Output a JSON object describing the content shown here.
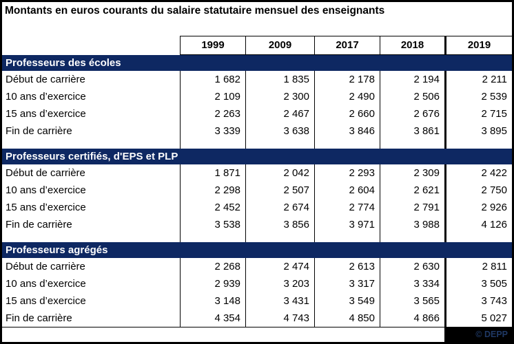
{
  "title": "Montants en euros courants du salaire statutaire mensuel des enseignants",
  "columns": [
    "1999",
    "2009",
    "2017",
    "2018",
    "2019"
  ],
  "sections": [
    {
      "header": "Professeurs des écoles",
      "rows": [
        {
          "label": "Début de carrière",
          "values": [
            "1 682",
            "1 835",
            "2 178",
            "2 194",
            "2 211"
          ]
        },
        {
          "label": "10 ans d’exercice",
          "values": [
            "2 109",
            "2 300",
            "2 490",
            "2 506",
            "2 539"
          ]
        },
        {
          "label": "15 ans d’exercice",
          "values": [
            "2 263",
            "2 467",
            "2 660",
            "2 676",
            "2 715"
          ]
        },
        {
          "label": "Fin de carrière",
          "values": [
            "3 339",
            "3 638",
            "3 846",
            "3 861",
            "3 895"
          ]
        }
      ]
    },
    {
      "header": "Professeurs certifiés, d'EPS et PLP",
      "rows": [
        {
          "label": "Début de carrière",
          "values": [
            "1 871",
            "2 042",
            "2 293",
            "2 309",
            "2 422"
          ]
        },
        {
          "label": "10 ans d’exercice",
          "values": [
            "2 298",
            "2 507",
            "2 604",
            "2 621",
            "2 750"
          ]
        },
        {
          "label": "15 ans d’exercice",
          "values": [
            "2 452",
            "2 674",
            "2 774",
            "2 791",
            "2 926"
          ]
        },
        {
          "label": "Fin de carrière",
          "values": [
            "3 538",
            "3 856",
            "3 971",
            "3 988",
            "4 126"
          ]
        }
      ]
    },
    {
      "header": "Professeurs agrégés",
      "rows": [
        {
          "label": "Début de carrière",
          "values": [
            "2 268",
            "2 474",
            "2 613",
            "2 630",
            "2 811"
          ]
        },
        {
          "label": "10 ans d’exercice",
          "values": [
            "2 939",
            "3 203",
            "3 317",
            "3 334",
            "3 505"
          ]
        },
        {
          "label": "15 ans d’exercice",
          "values": [
            "3 148",
            "3 431",
            "3 549",
            "3 565",
            "3 743"
          ]
        },
        {
          "label": "Fin de carrière",
          "values": [
            "4 354",
            "4 743",
            "4 850",
            "4 866",
            "5 027"
          ]
        }
      ]
    }
  ],
  "footer": {
    "credit": "© DEPP"
  },
  "colors": {
    "navy": "#0e2862",
    "border": "#000000",
    "credit-bg": "#000000",
    "credit-text": "#1f3864"
  },
  "chart_data": {
    "type": "table",
    "title": "Montants en euros courants du salaire statutaire mensuel des enseignants",
    "columns": [
      "1999",
      "2009",
      "2017",
      "2018",
      "2019"
    ],
    "unit": "euros courants par mois",
    "groups": [
      {
        "name": "Professeurs des écoles",
        "rows": [
          {
            "label": "Début de carrière",
            "values": [
              1682,
              1835,
              2178,
              2194,
              2211
            ]
          },
          {
            "label": "10 ans d’exercice",
            "values": [
              2109,
              2300,
              2490,
              2506,
              2539
            ]
          },
          {
            "label": "15 ans d’exercice",
            "values": [
              2263,
              2467,
              2660,
              2676,
              2715
            ]
          },
          {
            "label": "Fin de carrière",
            "values": [
              3339,
              3638,
              3846,
              3861,
              3895
            ]
          }
        ]
      },
      {
        "name": "Professeurs certifiés, d'EPS et PLP",
        "rows": [
          {
            "label": "Début de carrière",
            "values": [
              1871,
              2042,
              2293,
              2309,
              2422
            ]
          },
          {
            "label": "10 ans d’exercice",
            "values": [
              2298,
              2507,
              2604,
              2621,
              2750
            ]
          },
          {
            "label": "15 ans d’exercice",
            "values": [
              2452,
              2674,
              2774,
              2791,
              2926
            ]
          },
          {
            "label": "Fin de carrière",
            "values": [
              3538,
              3856,
              3971,
              3988,
              4126
            ]
          }
        ]
      },
      {
        "name": "Professeurs agrégés",
        "rows": [
          {
            "label": "Début de carrière",
            "values": [
              2268,
              2474,
              2613,
              2630,
              2811
            ]
          },
          {
            "label": "10 ans d’exercice",
            "values": [
              2939,
              3203,
              3317,
              3334,
              3505
            ]
          },
          {
            "label": "15 ans d’exercice",
            "values": [
              3148,
              3431,
              3549,
              3565,
              3743
            ]
          },
          {
            "label": "Fin de carrière",
            "values": [
              4354,
              4743,
              4850,
              4866,
              5027
            ]
          }
        ]
      }
    ],
    "source": "© DEPP"
  }
}
